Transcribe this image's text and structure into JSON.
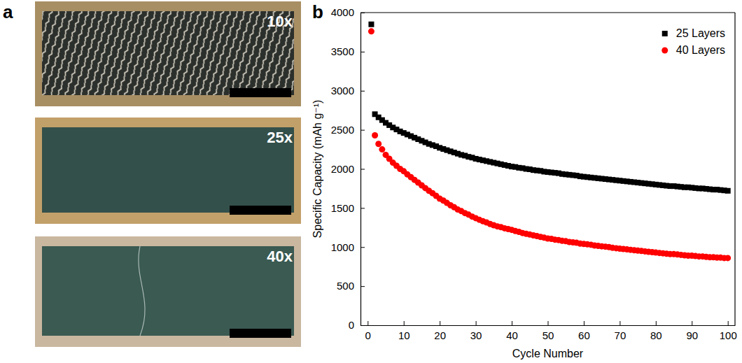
{
  "panels": [
    {
      "letter": "a",
      "images": [
        {
          "caption": "10x"
        },
        {
          "caption": "25x"
        },
        {
          "caption": "40x"
        }
      ]
    },
    {
      "letter": "b"
    }
  ],
  "chart_data": {
    "type": "scatter",
    "x_label": "Cycle Number",
    "y_label": "Specific Capacity (mAh g⁻¹)",
    "x": [
      1,
      2,
      3,
      4,
      5,
      6,
      7,
      8,
      9,
      10,
      11,
      12,
      13,
      14,
      15,
      16,
      17,
      18,
      19,
      20,
      21,
      22,
      23,
      24,
      25,
      26,
      27,
      28,
      29,
      30,
      31,
      32,
      33,
      34,
      35,
      36,
      37,
      38,
      39,
      40,
      41,
      42,
      43,
      44,
      45,
      46,
      47,
      48,
      49,
      50,
      51,
      52,
      53,
      54,
      55,
      56,
      57,
      58,
      59,
      60,
      61,
      62,
      63,
      64,
      65,
      66,
      67,
      68,
      69,
      70,
      71,
      72,
      73,
      74,
      75,
      76,
      77,
      78,
      79,
      80,
      81,
      82,
      83,
      84,
      85,
      86,
      87,
      88,
      89,
      90,
      91,
      92,
      93,
      94,
      95,
      96,
      97,
      98,
      99,
      100
    ],
    "series": [
      {
        "name": "25 Layers",
        "color": "#000000",
        "marker": "square",
        "values": [
          3850,
          2700,
          2660,
          2625,
          2590,
          2560,
          2530,
          2505,
          2480,
          2460,
          2440,
          2420,
          2400,
          2380,
          2360,
          2340,
          2320,
          2305,
          2290,
          2270,
          2255,
          2240,
          2225,
          2210,
          2195,
          2180,
          2170,
          2155,
          2145,
          2130,
          2120,
          2110,
          2100,
          2090,
          2080,
          2070,
          2060,
          2050,
          2040,
          2030,
          2025,
          2015,
          2010,
          2000,
          1995,
          1985,
          1980,
          1975,
          1965,
          1960,
          1955,
          1950,
          1945,
          1935,
          1930,
          1925,
          1920,
          1915,
          1905,
          1900,
          1895,
          1890,
          1885,
          1880,
          1875,
          1870,
          1865,
          1860,
          1855,
          1850,
          1845,
          1840,
          1835,
          1830,
          1825,
          1820,
          1815,
          1810,
          1805,
          1800,
          1795,
          1790,
          1785,
          1780,
          1780,
          1775,
          1770,
          1765,
          1765,
          1760,
          1755,
          1750,
          1750,
          1745,
          1740,
          1735,
          1735,
          1730,
          1725,
          1720
        ]
      },
      {
        "name": "40 Layers",
        "color": "#ff0000",
        "marker": "circle",
        "values": [
          3760,
          2430,
          2320,
          2250,
          2180,
          2130,
          2080,
          2040,
          2000,
          1970,
          1930,
          1895,
          1860,
          1825,
          1790,
          1755,
          1720,
          1690,
          1655,
          1620,
          1595,
          1565,
          1535,
          1510,
          1480,
          1460,
          1435,
          1415,
          1390,
          1370,
          1350,
          1330,
          1315,
          1295,
          1280,
          1265,
          1255,
          1240,
          1230,
          1220,
          1205,
          1195,
          1180,
          1170,
          1160,
          1150,
          1140,
          1130,
          1120,
          1110,
          1105,
          1095,
          1090,
          1080,
          1075,
          1065,
          1060,
          1055,
          1045,
          1040,
          1035,
          1030,
          1020,
          1015,
          1010,
          1005,
          1000,
          990,
          985,
          980,
          975,
          970,
          965,
          960,
          955,
          950,
          945,
          940,
          935,
          930,
          925,
          920,
          915,
          910,
          910,
          905,
          900,
          895,
          890,
          890,
          885,
          880,
          880,
          875,
          870,
          870,
          865,
          865,
          860,
          860
        ]
      }
    ],
    "xlim": [
      -2,
      102
    ],
    "xticks": [
      0,
      10,
      20,
      30,
      40,
      50,
      60,
      70,
      80,
      90,
      100
    ],
    "ylim": [
      0,
      4000
    ],
    "yticks": [
      0,
      500,
      1000,
      1500,
      2000,
      2500,
      3000,
      3500,
      4000
    ],
    "legend": "upper right",
    "grid": false
  }
}
